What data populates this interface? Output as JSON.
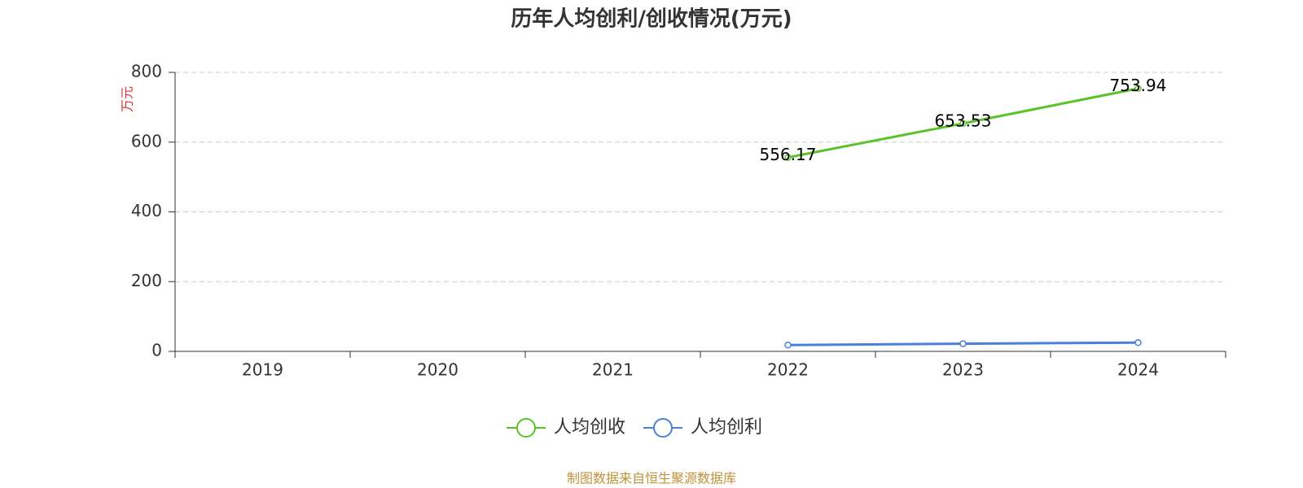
{
  "chart_data": {
    "type": "line",
    "title": "历年人均创利/创收情况(万元)",
    "y_label": "万元",
    "y_label_color": "#e62e2e",
    "categories": [
      "2019",
      "2020",
      "2021",
      "2022",
      "2023",
      "2024"
    ],
    "series": [
      {
        "name": "人均创收",
        "color": "#5ac229",
        "values": [
          null,
          null,
          null,
          556.17,
          653.53,
          753.94
        ],
        "show_labels": true
      },
      {
        "name": "人均创利",
        "color": "#4a7fdc",
        "values": [
          null,
          null,
          null,
          18,
          22,
          25
        ],
        "show_labels": false
      }
    ],
    "ylim": [
      0,
      800
    ],
    "yticks": [
      0,
      200,
      400,
      600,
      800
    ],
    "grid": true,
    "legend": "bottom",
    "source": "制图数据来自恒生聚源数据库"
  }
}
